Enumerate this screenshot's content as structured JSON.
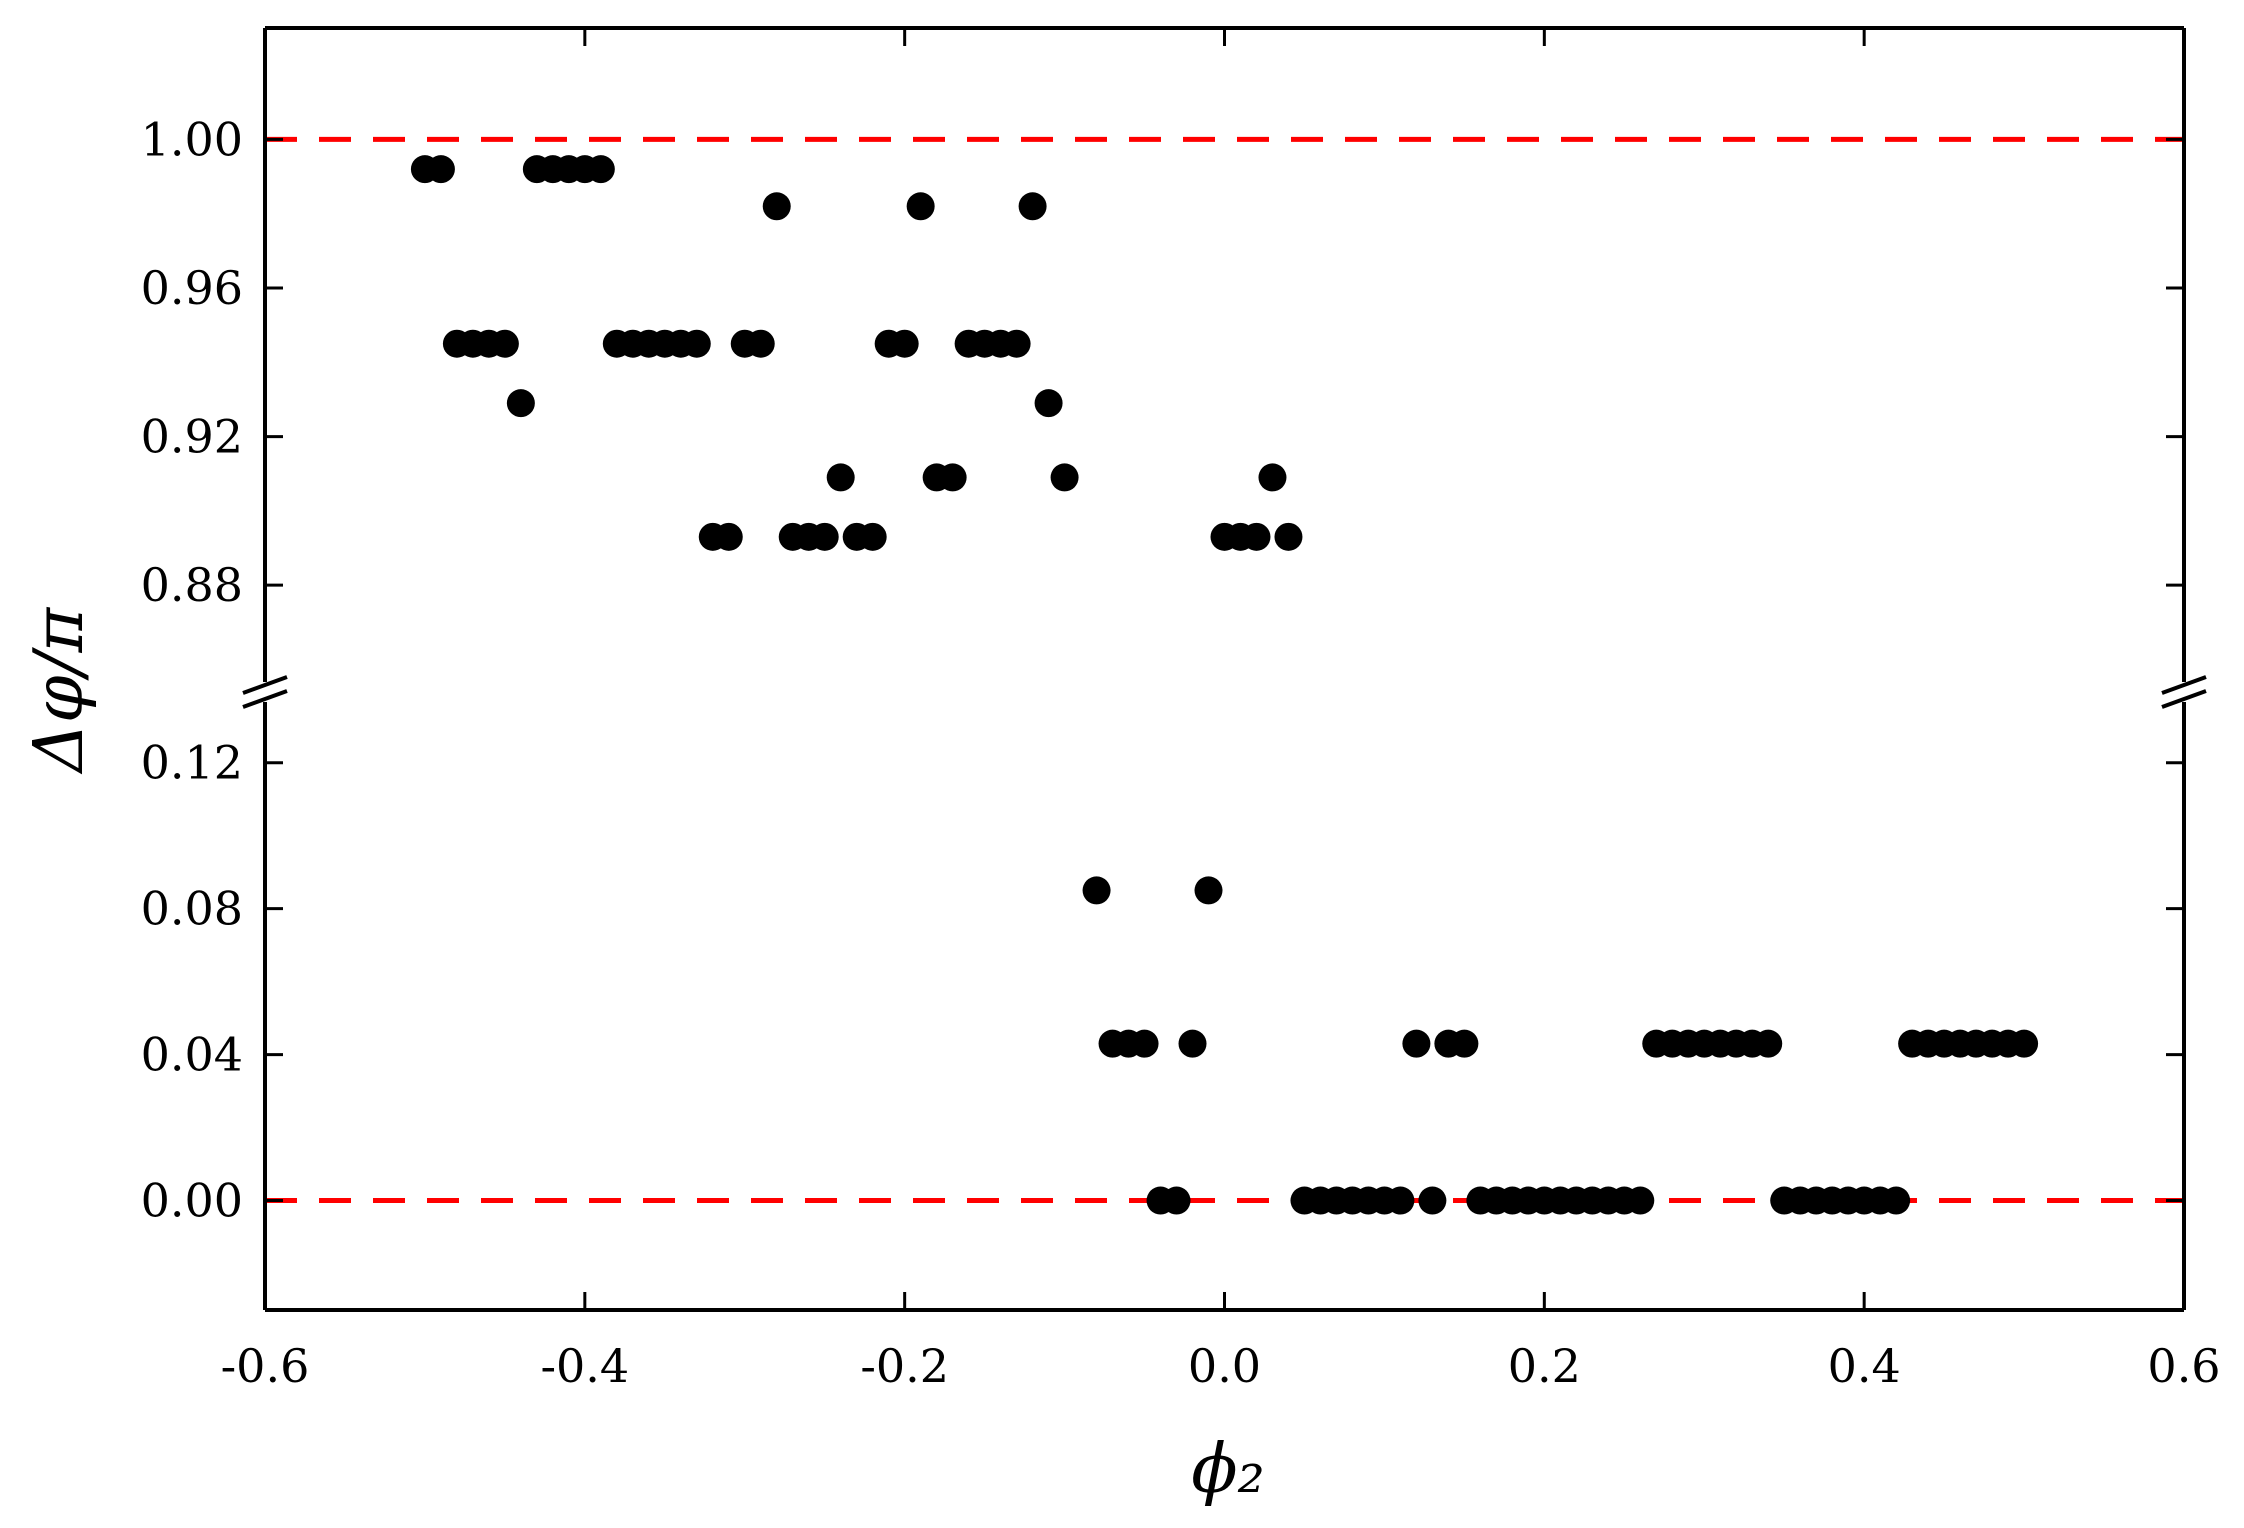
{
  "chart_data": {
    "type": "scatter",
    "title": "",
    "xlabel": "ϕ₂",
    "ylabel": "Δφ/π",
    "xlim": [
      -0.6,
      0.6
    ],
    "x_ticks": [
      -0.6,
      -0.4,
      -0.2,
      0.0,
      0.2,
      0.4,
      0.6
    ],
    "x_tick_labels": [
      "-0.6",
      "-0.4",
      "-0.2",
      "0.0",
      "0.2",
      "0.4",
      "0.6"
    ],
    "y_axis_break": true,
    "ylim_upper": [
      0.855,
      1.03
    ],
    "ylim_lower": [
      -0.03,
      0.135
    ],
    "y_ticks_upper": [
      0.88,
      0.92,
      0.96,
      1.0
    ],
    "y_tick_labels_upper": [
      "0.88",
      "0.92",
      "0.96",
      "1.00"
    ],
    "y_ticks_lower": [
      0.0,
      0.04,
      0.08,
      0.12
    ],
    "y_tick_labels_lower": [
      "0.00",
      "0.04",
      "0.08",
      "0.12"
    ],
    "reference_lines": [
      1.0,
      0.0
    ],
    "colors": {
      "points": "#000000",
      "reference": "#ff0000",
      "axis": "#000000"
    },
    "grid": false,
    "legend": "none",
    "x": [
      -0.5,
      -0.49,
      -0.48,
      -0.47,
      -0.46,
      -0.45,
      -0.44,
      -0.43,
      -0.42,
      -0.41,
      -0.4,
      -0.39,
      -0.38,
      -0.37,
      -0.36,
      -0.35,
      -0.34,
      -0.33,
      -0.32,
      -0.31,
      -0.3,
      -0.29,
      -0.28,
      -0.27,
      -0.26,
      -0.25,
      -0.24,
      -0.23,
      -0.22,
      -0.21,
      -0.2,
      -0.19,
      -0.18,
      -0.17,
      -0.16,
      -0.15,
      -0.14,
      -0.13,
      -0.12,
      -0.11,
      -0.1,
      -0.08,
      -0.07,
      -0.06,
      -0.05,
      -0.04,
      -0.03,
      -0.02,
      -0.01,
      0.0,
      0.01,
      0.02,
      0.03,
      0.04,
      0.05,
      0.06,
      0.07,
      0.08,
      0.09,
      0.1,
      0.11,
      0.12,
      0.13,
      0.14,
      0.15,
      0.16,
      0.17,
      0.18,
      0.19,
      0.2,
      0.21,
      0.22,
      0.23,
      0.24,
      0.25,
      0.26,
      0.27,
      0.28,
      0.29,
      0.3,
      0.31,
      0.32,
      0.33,
      0.34,
      0.35,
      0.36,
      0.37,
      0.38,
      0.39,
      0.4,
      0.41,
      0.42,
      0.43,
      0.44,
      0.45,
      0.46,
      0.47,
      0.48,
      0.49,
      0.5
    ],
    "y": [
      0.992,
      0.992,
      0.945,
      0.945,
      0.945,
      0.945,
      0.929,
      0.992,
      0.992,
      0.992,
      0.992,
      0.992,
      0.945,
      0.945,
      0.945,
      0.945,
      0.945,
      0.945,
      0.893,
      0.893,
      0.945,
      0.945,
      0.982,
      0.893,
      0.893,
      0.893,
      0.909,
      0.893,
      0.893,
      0.945,
      0.945,
      0.982,
      0.909,
      0.909,
      0.945,
      0.945,
      0.945,
      0.945,
      0.982,
      0.929,
      0.909,
      0.085,
      0.043,
      0.043,
      0.043,
      0.0,
      0.0,
      0.043,
      0.085,
      0.893,
      0.893,
      0.893,
      0.909,
      0.893,
      0.0,
      0.0,
      0.0,
      0.0,
      0.0,
      0.0,
      0.0,
      0.043,
      0.0,
      0.043,
      0.043,
      0.0,
      0.0,
      0.0,
      0.0,
      0.0,
      0.0,
      0.0,
      0.0,
      0.0,
      0.0,
      0.0,
      0.043,
      0.043,
      0.043,
      0.043,
      0.043,
      0.043,
      0.043,
      0.043,
      0.0,
      0.0,
      0.0,
      0.0,
      0.0,
      0.0,
      0.0,
      0.0,
      0.043,
      0.043,
      0.043,
      0.043,
      0.043,
      0.043,
      0.043,
      0.043
    ]
  }
}
